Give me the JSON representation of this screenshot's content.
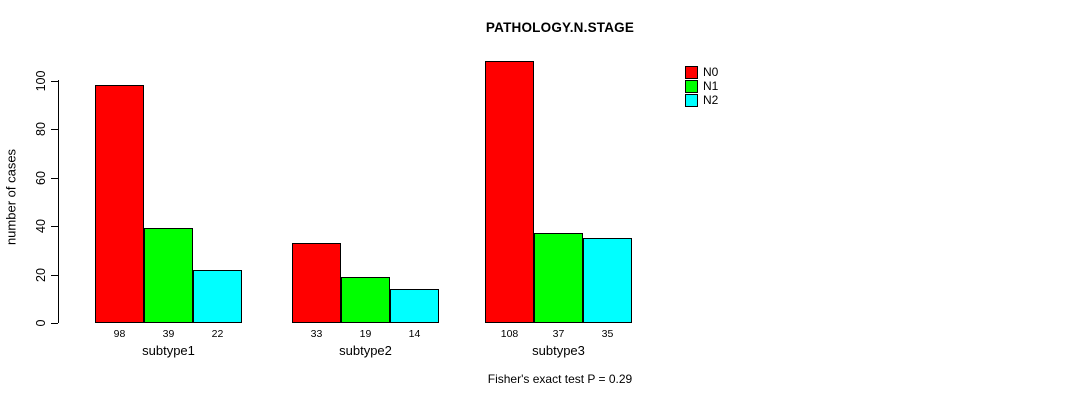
{
  "chart_data": {
    "type": "bar",
    "title": "PATHOLOGY.N.STAGE",
    "ylabel": "number of cases",
    "xlabel": "",
    "categories": [
      "subtype1",
      "subtype2",
      "subtype3"
    ],
    "series": [
      {
        "name": "N0",
        "color": "#FF0000",
        "values": [
          98,
          33,
          108
        ]
      },
      {
        "name": "N1",
        "color": "#00FF00",
        "values": [
          39,
          19,
          37
        ]
      },
      {
        "name": "N2",
        "color": "#00FFFF",
        "values": [
          22,
          14,
          35
        ]
      }
    ],
    "yticks": [
      0,
      20,
      40,
      60,
      80,
      100
    ],
    "ylim": [
      0,
      110
    ],
    "grid": false,
    "show_values_below_bars": true,
    "legend_position": "top-right",
    "annotation": "Fisher's exact test P = 0.29",
    "axis_color": "#000000",
    "background": "#FFFFFF"
  }
}
